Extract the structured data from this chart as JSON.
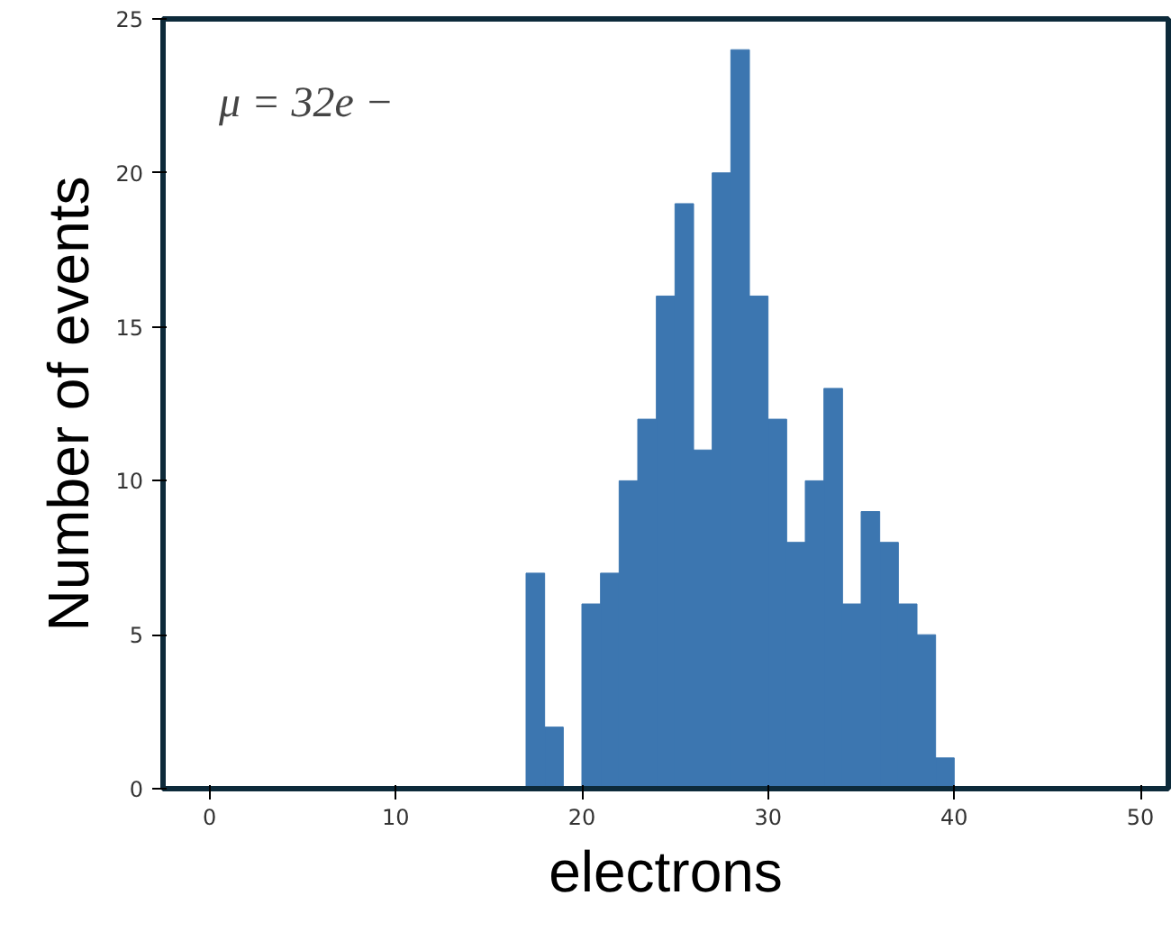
{
  "chart_data": {
    "type": "histogram",
    "xlabel": "electrons",
    "ylabel": "Number of events",
    "annotations": [
      "μ = 32e −"
    ],
    "bins": [
      0,
      1,
      2,
      3,
      4,
      5,
      6,
      7,
      8,
      9,
      10,
      11,
      12,
      13,
      14,
      15,
      16,
      17,
      18,
      19,
      20,
      21,
      22,
      23,
      24,
      25,
      26,
      27,
      28,
      29,
      30,
      31,
      32,
      33,
      34,
      35,
      36,
      37,
      38,
      39,
      40,
      41,
      42,
      43,
      44,
      45,
      46,
      47,
      48,
      49,
      50
    ],
    "values": [
      0,
      0,
      0,
      0,
      0,
      0,
      0,
      0,
      0,
      0,
      0,
      0,
      0,
      0,
      0,
      0,
      0,
      7,
      2,
      0,
      6,
      7,
      10,
      12,
      16,
      19,
      11,
      20,
      24,
      16,
      12,
      8,
      10,
      13,
      6,
      9,
      8,
      6,
      5,
      1,
      0,
      0,
      0,
      0,
      0,
      0,
      0,
      0,
      0,
      0
    ],
    "color": "#3c76b0",
    "xlim": [
      -2.5,
      51.5
    ],
    "ylim": [
      0,
      25
    ],
    "xticks": [
      0,
      10,
      20,
      30,
      40,
      50
    ],
    "yticks": [
      0,
      5,
      10,
      15,
      20,
      25
    ],
    "grid": false
  }
}
